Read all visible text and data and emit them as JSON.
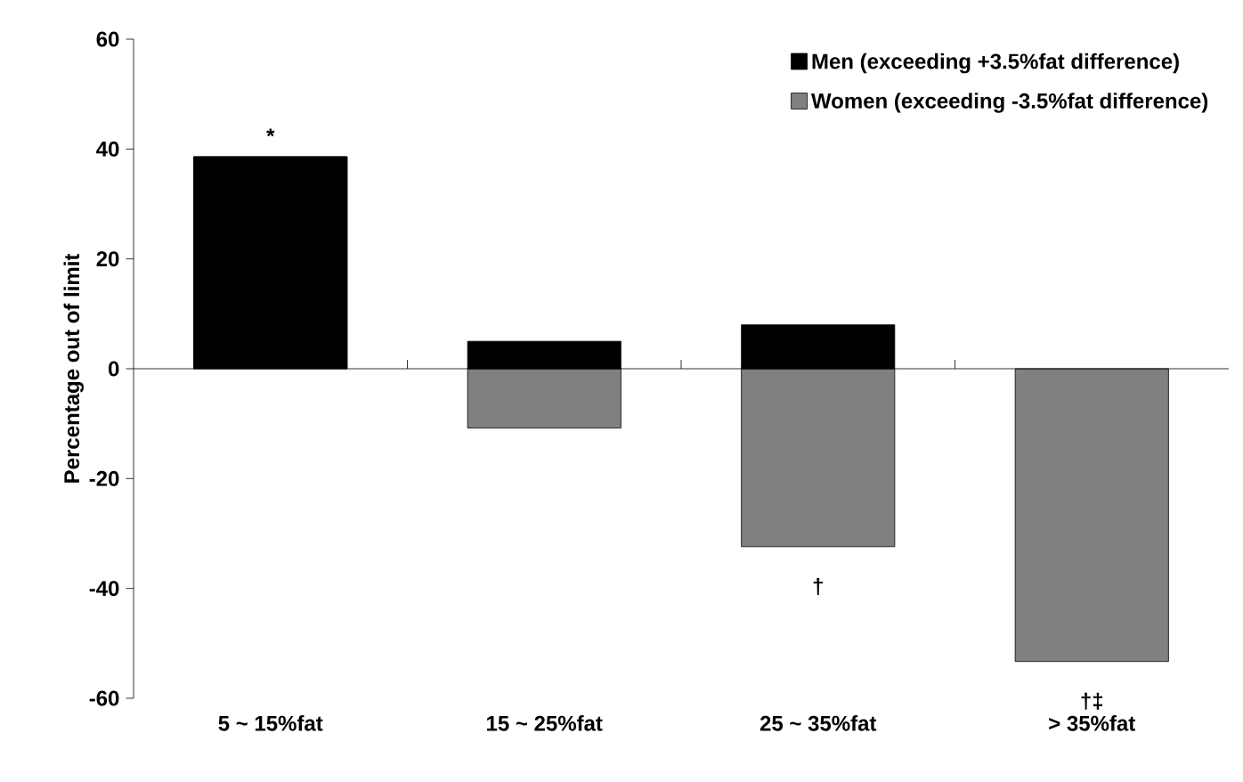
{
  "chart_data": {
    "type": "bar",
    "ylabel": "Percentage out of limit",
    "categories": [
      "5 ~ 15%fat",
      "15 ~ 25%fat",
      "25 ~ 35%fat",
      "> 35%fat"
    ],
    "series": [
      {
        "name": "Men (exceeding +3.5%fat difference)",
        "color": "#000000",
        "values": [
          38.6,
          5,
          8,
          0
        ]
      },
      {
        "name": "Women (exceeding -3.5%fat difference)",
        "color": "#808080",
        "values": [
          0,
          -10.8,
          -32.4,
          -53.3
        ]
      }
    ],
    "ylim": [
      -60,
      60
    ],
    "yticks": [
      -60,
      -40,
      -20,
      0,
      20,
      40,
      60
    ],
    "annotations": [
      {
        "text": "*",
        "x": "5 ~ 15%fat",
        "y": 38.6
      },
      {
        "text": "†",
        "x": "25 ~ 35%fat",
        "y": -32.4
      },
      {
        "text": "†‡",
        "x": "> 35%fat",
        "y": -53.3
      }
    ],
    "stacked": true,
    "legend": "top right"
  }
}
